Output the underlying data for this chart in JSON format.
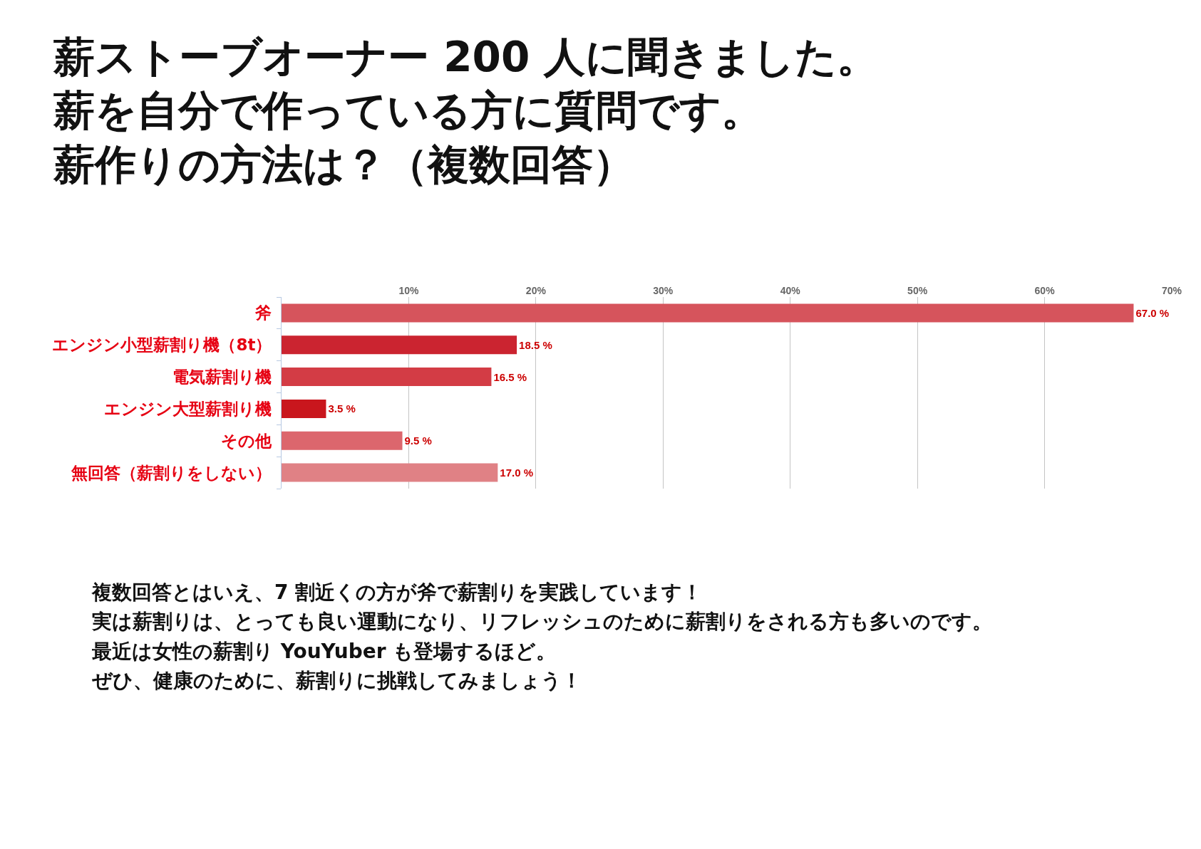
{
  "chart_data": {
    "type": "bar",
    "orientation": "horizontal",
    "title": "薪ストーブオーナー 200 人に聞きました。薪を自分で作っている方に質問です。薪作りの方法は？（複数回答）",
    "categories": [
      "斧",
      "エンジン小型薪割り機（8t）",
      "電気薪割り機",
      "エンジン大型薪割り機",
      "その他",
      "無回答（薪割りをしない）"
    ],
    "values": [
      67.0,
      18.5,
      16.5,
      3.5,
      9.5,
      17.0
    ],
    "value_labels": [
      "67.0 %",
      "18.5 %",
      "16.5 %",
      "3.5 %",
      "9.5 %",
      "17.0 %"
    ],
    "colors": [
      "#d6545c",
      "#cb2430",
      "#d33c45",
      "#c9161d",
      "#dc666d",
      "#e08185"
    ],
    "xlim": [
      0,
      70
    ],
    "xticks": [
      {
        "value": 10,
        "label": "10%"
      },
      {
        "value": 20,
        "label": "20%"
      },
      {
        "value": 30,
        "label": "30%"
      },
      {
        "value": 40,
        "label": "40%"
      },
      {
        "value": 50,
        "label": "50%"
      },
      {
        "value": 60,
        "label": "60%"
      },
      {
        "value": 70,
        "label": "70%"
      }
    ],
    "grid": "x",
    "annotations": [
      "複数回答とはいえ、7 割近くの方が斧で薪割りを実践しています！",
      "実は薪割りは、とっても良い運動になり、リフレッシュのために薪割りをされる方も多いのです。",
      "最近は女性の薪割り YouYuber も登場するほど。",
      "ぜひ、健康のために、薪割りに挑戦してみましょう！"
    ]
  }
}
